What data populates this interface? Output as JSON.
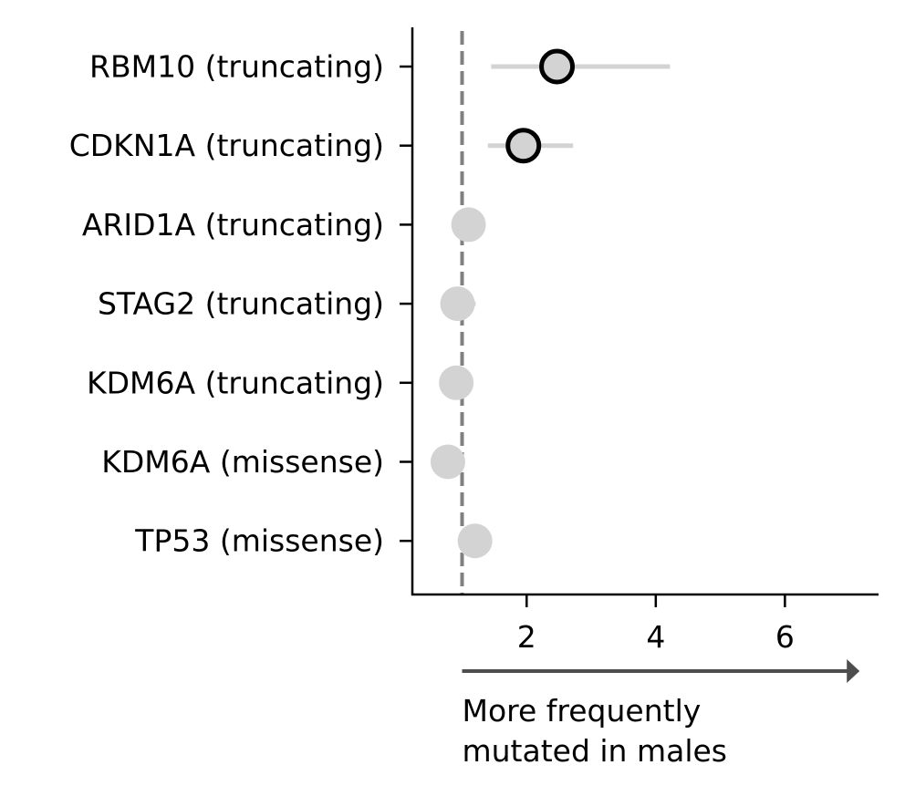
{
  "chart_data": {
    "type": "scatter",
    "title": "",
    "xlabel": "",
    "ylabel": "",
    "xlim": [
      0.23,
      7.45
    ],
    "xticks": [
      2,
      4,
      6
    ],
    "xtick_labels": [
      "2",
      "4",
      "6"
    ],
    "reference_line_x": 1,
    "grid": false,
    "legend": null,
    "categories": [
      "RBM10 (truncating)",
      "CDKN1A (truncating)",
      "ARID1A (truncating)",
      "STAG2 (truncating)",
      "KDM6A (truncating)",
      "KDM6A (missense)",
      "TP53 (missense)"
    ],
    "points": [
      {
        "label": "RBM10 (truncating)",
        "x": 2.47,
        "ci": [
          1.45,
          4.22
        ],
        "significant": true
      },
      {
        "label": "CDKN1A (truncating)",
        "x": 1.95,
        "ci": [
          1.4,
          2.72
        ],
        "significant": true
      },
      {
        "label": "ARID1A (truncating)",
        "x": 1.1,
        "ci": [
          1.1,
          1.1
        ],
        "significant": false
      },
      {
        "label": "STAG2 (truncating)",
        "x": 0.93,
        "ci": [
          0.93,
          1.21
        ],
        "significant": false
      },
      {
        "label": "KDM6A (truncating)",
        "x": 0.91,
        "ci": [
          0.91,
          0.91
        ],
        "significant": false
      },
      {
        "label": "KDM6A (missense)",
        "x": 0.78,
        "ci": [
          0.78,
          0.78
        ],
        "significant": false
      },
      {
        "label": "TP53 (missense)",
        "x": 1.2,
        "ci": [
          1.2,
          1.2
        ],
        "significant": false
      }
    ],
    "annotation": {
      "lines": [
        "More frequently",
        "mutated in males"
      ],
      "arrow_from_x": 1,
      "arrow_to_x": 7.1
    },
    "colors": {
      "point_fill": "#d3d3d3",
      "significant_edge": "#000000",
      "ci_line": "#d3d3d3",
      "reference_line": "#808080",
      "arrow": "#4d4d4d",
      "axis": "#000000"
    }
  }
}
